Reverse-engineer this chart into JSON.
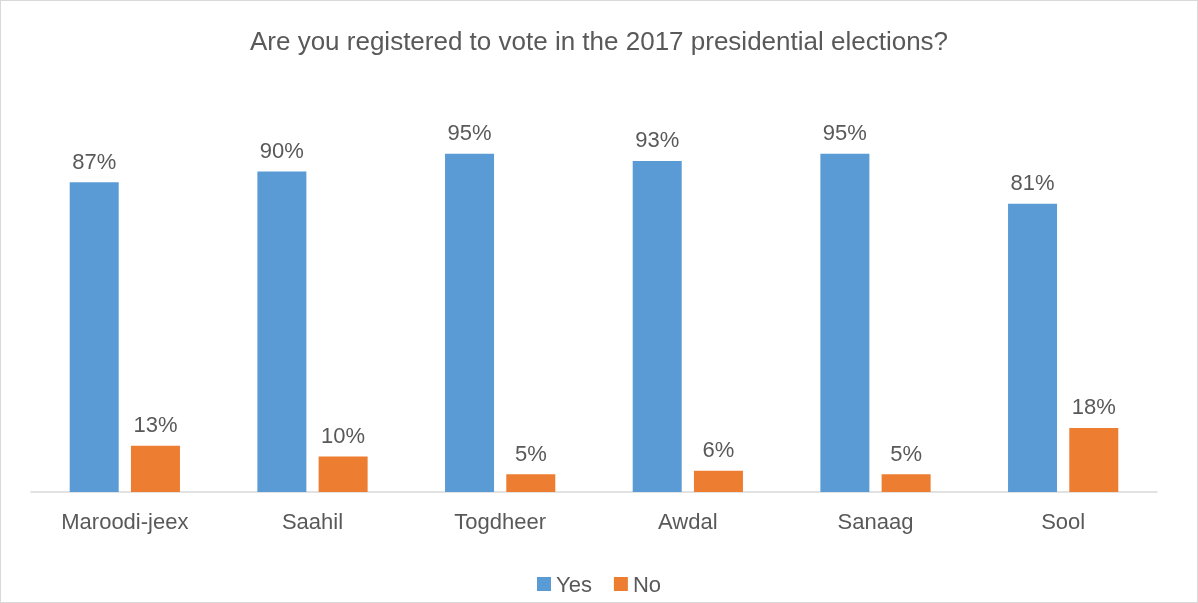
{
  "chart_data": {
    "type": "bar",
    "title": "Are you registered to vote in the 2017 presidential elections?",
    "categories": [
      "Maroodi-jeex",
      "Saahil",
      "Togdheer",
      "Awdal",
      "Sanaag",
      "Sool"
    ],
    "series": [
      {
        "name": "Yes",
        "color": "#5b9bd5",
        "values": [
          87,
          90,
          95,
          93,
          95,
          81
        ],
        "value_labels": [
          "87%",
          "90%",
          "95%",
          "93%",
          "95%",
          "81%"
        ]
      },
      {
        "name": "No",
        "color": "#ed7d31",
        "values": [
          13,
          10,
          5,
          6,
          5,
          18
        ],
        "value_labels": [
          "13%",
          "10%",
          "5%",
          "6%",
          "5%",
          "18%"
        ]
      }
    ],
    "legend": "bottom"
  }
}
